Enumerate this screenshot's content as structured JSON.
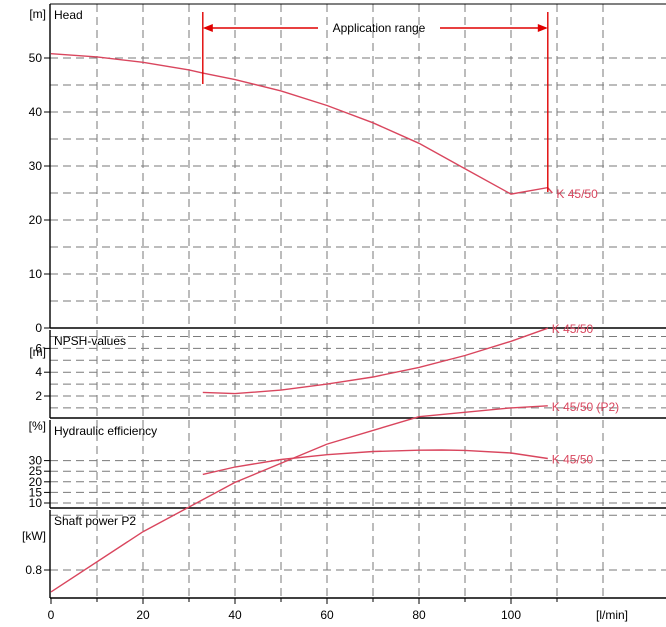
{
  "colors": {
    "curve": "#d9465e",
    "range": "#e00000",
    "grid": "#7a7a7a",
    "axis": "#000000"
  },
  "application_range": {
    "label": "Application range",
    "x": [
      33,
      108
    ]
  },
  "x_axis": {
    "unit": "[l/min]",
    "range": [
      0,
      120
    ],
    "ticks": [
      0,
      20,
      40,
      60,
      80,
      100
    ]
  },
  "chart_data": [
    {
      "type": "line",
      "title": "Head",
      "ylabel": "[m]",
      "ylim": [
        0,
        55
      ],
      "yticks": [
        0,
        10,
        20,
        30,
        40,
        50
      ],
      "grid": true,
      "series": [
        {
          "name": "K 45/50",
          "x": [
            0,
            10,
            20,
            30,
            33,
            40,
            50,
            60,
            70,
            80,
            90,
            100,
            108,
            109
          ],
          "y": [
            50.8,
            50.2,
            49.2,
            47.8,
            47.2,
            46.0,
            43.9,
            41.2,
            38.0,
            34.2,
            29.5,
            24.8,
            26.0,
            25.0
          ]
        }
      ]
    },
    {
      "type": "line",
      "title": "NPSH-values",
      "ylabel": "[m]",
      "ylim": [
        0,
        8
      ],
      "yticks": [
        2,
        4,
        6
      ],
      "grid": true,
      "series": [
        {
          "name": "K 45/50",
          "x": [
            33,
            40,
            50,
            60,
            70,
            80,
            90,
            100,
            108
          ],
          "y": [
            2.3,
            2.2,
            2.5,
            3.0,
            3.6,
            4.4,
            5.4,
            6.6,
            7.7
          ]
        }
      ]
    },
    {
      "type": "line",
      "title": "Hydraulic efficiency",
      "ylabel": "[%]",
      "ylim": [
        5,
        35
      ],
      "yticks": [
        10,
        15,
        20,
        25,
        30
      ],
      "grid": true,
      "series": [
        {
          "name": "K 45/50",
          "x": [
            33,
            40,
            50,
            60,
            70,
            80,
            85,
            90,
            100,
            108
          ],
          "y": [
            23.5,
            27.0,
            30.5,
            32.8,
            34.3,
            34.9,
            35.0,
            34.8,
            33.6,
            31.0
          ]
        }
      ]
    },
    {
      "type": "line",
      "title": "Shaft power P2",
      "ylabel": "[kW]",
      "ylim": [
        0.75,
        0.98
      ],
      "yticks": [
        0.8
      ],
      "grid": true,
      "series": [
        {
          "name": "K 45/50 (P2)",
          "x": [
            0,
            20,
            40,
            60,
            80,
            100,
            108
          ],
          "y": [
            0.78,
            0.835,
            0.88,
            0.915,
            0.94,
            0.948,
            0.95
          ]
        }
      ]
    }
  ]
}
